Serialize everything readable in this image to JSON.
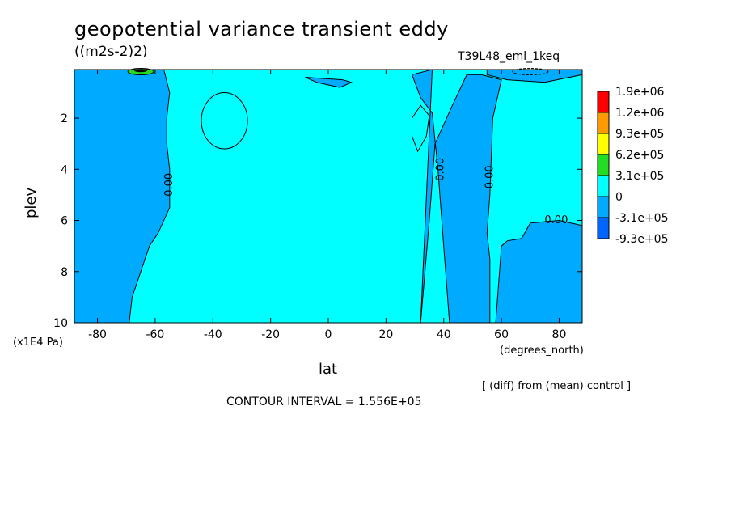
{
  "header": {
    "title": "geopotential variance transient eddy",
    "units": "((m2s-2)2)",
    "run": "T39L48_eml_1keq"
  },
  "footer": {
    "diff_note": "[ (diff) from (mean) control ]",
    "contour_interval": "CONTOUR INTERVAL = 1.556E+05"
  },
  "chart_data": {
    "type": "heatmap",
    "title": "geopotential variance transient eddy",
    "units": "((m2s-2)2)",
    "xlabel": "lat",
    "x_unit": "(degrees_north)",
    "ylabel": "plev",
    "y_unit": "(x1E4 Pa)",
    "xlim": [
      -88,
      88
    ],
    "ylim": [
      10,
      0.1
    ],
    "y_inverted": true,
    "xticks": [
      -80,
      -60,
      -40,
      -20,
      0,
      20,
      40,
      60,
      80
    ],
    "xtick_labels": [
      "-80",
      "-60",
      "-40",
      "-20",
      "0",
      "20",
      "40",
      "60",
      "80"
    ],
    "yticks": [
      2,
      4,
      6,
      8,
      10
    ],
    "ytick_labels": [
      "2",
      "4",
      "6",
      "8",
      "10"
    ],
    "contour_interval": 155600,
    "contour_labels": [
      {
        "text": "0.00",
        "lat": -55,
        "plev": 4.6
      },
      {
        "text": "0.00",
        "lat": 39,
        "plev": 4.0
      },
      {
        "text": "0.00",
        "lat": 56,
        "plev": 4.3
      },
      {
        "text": "0.00",
        "lat": 79,
        "plev": 6.0
      }
    ],
    "colorbar": {
      "levels": [
        "1.9e+06",
        "1.2e+06",
        "9.3e+05",
        "6.2e+05",
        "3.1e+05",
        "0",
        "-3.1e+05",
        "-9.3e+05"
      ],
      "colors": [
        "#ff0000",
        "#ff9900",
        "#ffff00",
        "#22dd22",
        "#00ffff",
        "#00aaff",
        "#0066ff"
      ]
    },
    "field_colors": {
      "positive": "#00ffff",
      "negative": "#00aaff",
      "strong_negative": "#0066ff",
      "strong_positive": "#22dd22"
    },
    "negative_regions": [
      {
        "name": "south-polar",
        "boundary": [
          [
            -88,
            0.1
          ],
          [
            -57,
            0.1
          ],
          [
            -55,
            1.0
          ],
          [
            -56,
            2.0
          ],
          [
            -56,
            3.0
          ],
          [
            -55,
            4.0
          ],
          [
            -55,
            5.5
          ],
          [
            -59,
            6.5
          ],
          [
            -62,
            7.0
          ],
          [
            -65,
            8.0
          ],
          [
            -68,
            9.0
          ],
          [
            -69,
            10
          ],
          [
            -88,
            10
          ]
        ]
      },
      {
        "name": "northern-band",
        "boundary": [
          [
            32,
            10
          ],
          [
            35,
            6.0
          ],
          [
            37,
            3.0
          ],
          [
            43,
            1.5
          ],
          [
            48,
            0.3
          ],
          [
            53,
            0.3
          ],
          [
            60,
            0.5
          ],
          [
            57,
            2.0
          ],
          [
            56,
            5.0
          ],
          [
            55,
            6.5
          ],
          [
            56,
            7.5
          ],
          [
            56,
            10
          ],
          [
            42,
            10
          ],
          [
            40,
            7.0
          ],
          [
            38,
            4.0
          ],
          [
            36,
            1.8
          ],
          [
            32,
            1.2
          ],
          [
            29,
            0.3
          ],
          [
            36,
            0.1
          ]
        ]
      },
      {
        "name": "north-polar-lower",
        "boundary": [
          [
            88,
            6.2
          ],
          [
            80,
            6.0
          ],
          [
            70,
            6.1
          ],
          [
            67,
            6.7
          ],
          [
            62,
            6.8
          ],
          [
            60,
            7.0
          ],
          [
            58,
            10
          ],
          [
            88,
            10
          ]
        ]
      },
      {
        "name": "top-right-band",
        "boundary": [
          [
            55,
            0.1
          ],
          [
            88,
            0.1
          ],
          [
            88,
            0.3
          ],
          [
            75,
            0.6
          ],
          [
            62,
            0.5
          ],
          [
            55,
            0.3
          ]
        ]
      },
      {
        "name": "small-patch",
        "boundary": [
          [
            -8,
            0.4
          ],
          [
            5,
            0.5
          ],
          [
            8,
            0.6
          ],
          [
            4,
            0.8
          ],
          [
            -4,
            0.6
          ]
        ]
      }
    ],
    "closed_contours": [
      {
        "name": "south-oval",
        "center": [
          -36,
          2.1
        ],
        "radii": [
          8,
          1.1
        ]
      },
      {
        "name": "north-oval",
        "boundary": [
          [
            32,
            1.5
          ],
          [
            35,
            1.9
          ],
          [
            34,
            2.7
          ],
          [
            31,
            3.3
          ],
          [
            29,
            2.7
          ],
          [
            29,
            2.0
          ]
        ]
      }
    ]
  }
}
